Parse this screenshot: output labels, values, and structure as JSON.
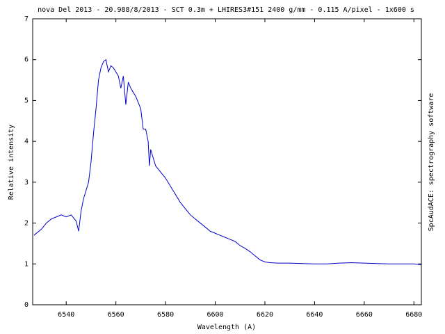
{
  "chart_data": {
    "type": "line",
    "title": "nova Del 2013 - 20.988/8/2013 - SCT 0.3m + LHIRES3#151 2400 g/mm - 0.115 A/pixel - 1x600 s",
    "x_label": "Wavelength (A)",
    "y_label": "Relative intensity",
    "side_text": "SpcAudACE: spectrography software",
    "x": [
      6527,
      6530,
      6532,
      6534,
      6536,
      6538,
      6540,
      6542,
      6544,
      6545,
      6546,
      6547,
      6548,
      6549,
      6550,
      6551,
      6552,
      6553,
      6554,
      6555,
      6556,
      6557,
      6558,
      6559,
      6560,
      6561,
      6562,
      6563,
      6564,
      6565,
      6566,
      6567,
      6568,
      6569,
      6570,
      6571,
      6572,
      6573,
      6573.5,
      6574,
      6575,
      6576,
      6578,
      6580,
      6582,
      6584,
      6586,
      6588,
      6590,
      6592,
      6594,
      6596,
      6598,
      6600,
      6602,
      6604,
      6606,
      6608,
      6610,
      6612,
      6614,
      6616,
      6618,
      6620,
      6622,
      6625,
      6630,
      6635,
      6640,
      6645,
      6650,
      6655,
      6660,
      6665,
      6670,
      6675,
      6680,
      6683
    ],
    "series": [
      {
        "name": "nova Del 2013",
        "color": "#0000cc",
        "values": [
          1.7,
          1.85,
          2.0,
          2.1,
          2.15,
          2.2,
          2.15,
          2.2,
          2.05,
          1.8,
          2.3,
          2.6,
          2.8,
          3.0,
          3.5,
          4.2,
          4.8,
          5.5,
          5.8,
          5.95,
          6.0,
          5.7,
          5.85,
          5.8,
          5.7,
          5.6,
          5.3,
          5.6,
          4.9,
          5.45,
          5.3,
          5.2,
          5.1,
          4.95,
          4.8,
          4.3,
          4.3,
          4.0,
          3.4,
          3.8,
          3.6,
          3.4,
          3.25,
          3.1,
          2.9,
          2.7,
          2.5,
          2.35,
          2.2,
          2.1,
          2.0,
          1.9,
          1.8,
          1.75,
          1.7,
          1.65,
          1.6,
          1.55,
          1.45,
          1.38,
          1.3,
          1.2,
          1.1,
          1.05,
          1.03,
          1.02,
          1.02,
          1.01,
          1.0,
          1.0,
          1.02,
          1.03,
          1.02,
          1.01,
          1.0,
          1.0,
          1.0,
          0.98
        ]
      }
    ],
    "xlim": [
      6526.5,
      6683
    ],
    "ylim": [
      0,
      7
    ],
    "xticks": [
      6540,
      6560,
      6580,
      6600,
      6620,
      6640,
      6660,
      6680
    ],
    "yticks": [
      0,
      1,
      2,
      3,
      4,
      5,
      6,
      7
    ]
  }
}
